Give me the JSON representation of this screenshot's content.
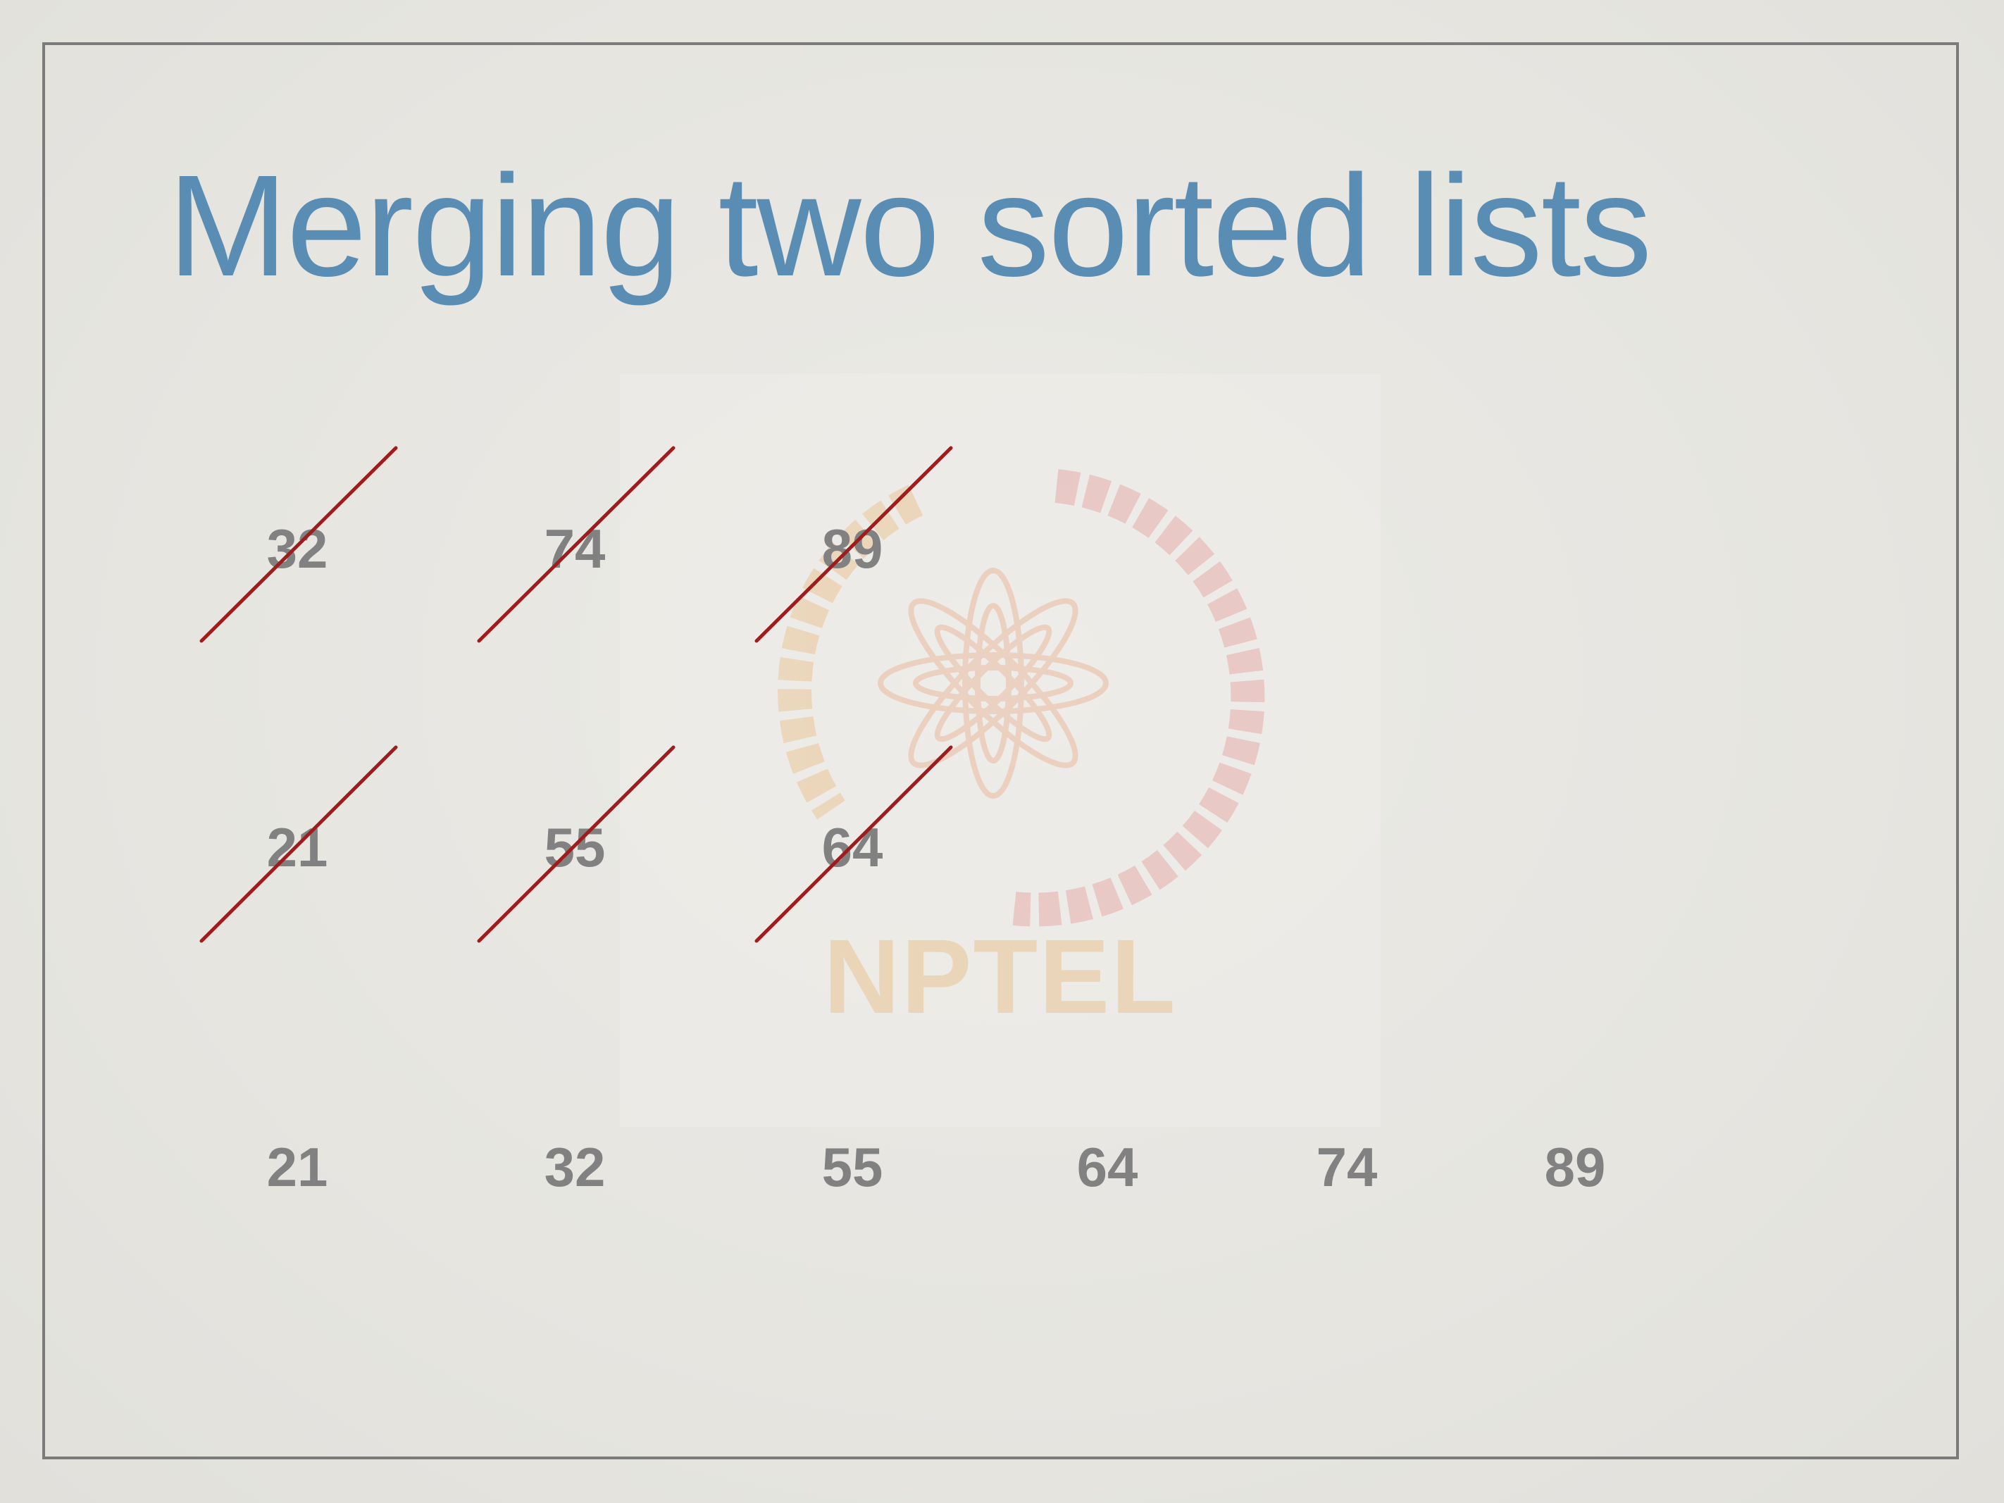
{
  "slide": {
    "title": "Merging two sorted lists",
    "watermark_text": "NPTEL",
    "list_a": [
      "32",
      "74",
      "89"
    ],
    "list_b": [
      "21",
      "55",
      "64"
    ],
    "merged": [
      "21",
      "32",
      "55",
      "64",
      "74",
      "89"
    ],
    "crossed_out": {
      "list_a": [
        true,
        true,
        true
      ],
      "list_b": [
        true,
        true,
        true
      ]
    },
    "colors": {
      "title": "#5a8db3",
      "numbers": "#818181",
      "strike": "#a01c1c",
      "frame": "#7b7b7b"
    }
  }
}
